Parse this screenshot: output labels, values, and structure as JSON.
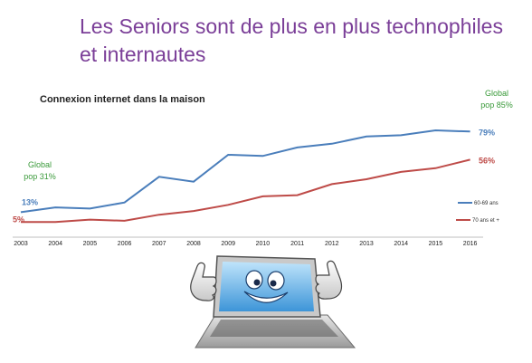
{
  "slide": {
    "title": "Les Seniors sont de plus en plus technophiles et internautes"
  },
  "annotations": {
    "global_left_line1": "Global",
    "global_left_line2": "pop 31%",
    "global_right_line1": "Global",
    "global_right_line2": "pop 85%"
  },
  "colors": {
    "title": "#7b3f98",
    "series_60_69": "#4a7ebb",
    "series_70_plus": "#be4b48",
    "annotation": "#3a9a3a"
  },
  "illustration": {
    "icon": "smiling-laptop-thumbs-up-icon"
  },
  "chart_data": {
    "type": "line",
    "title": "Connexion internet dans la maison",
    "xlabel": "",
    "ylabel": "",
    "x": [
      "2003",
      "2004",
      "2005",
      "2006",
      "2007",
      "2008",
      "2009",
      "2010",
      "2011",
      "2012",
      "2013",
      "2014",
      "2015",
      "2016"
    ],
    "ylim": [
      0,
      100
    ],
    "grid": false,
    "legend": "right",
    "series": [
      {
        "name": "60-69 ans",
        "values": [
          13,
          17,
          16,
          21,
          42,
          38,
          60,
          59,
          66,
          69,
          75,
          76,
          80,
          79
        ],
        "end_label": "79%",
        "start_label": "13%"
      },
      {
        "name": "70 ans et +",
        "values": [
          5,
          5,
          7,
          6,
          11,
          14,
          19,
          26,
          27,
          36,
          40,
          46,
          49,
          56
        ],
        "end_label": "56%",
        "start_label": "5%"
      }
    ]
  }
}
